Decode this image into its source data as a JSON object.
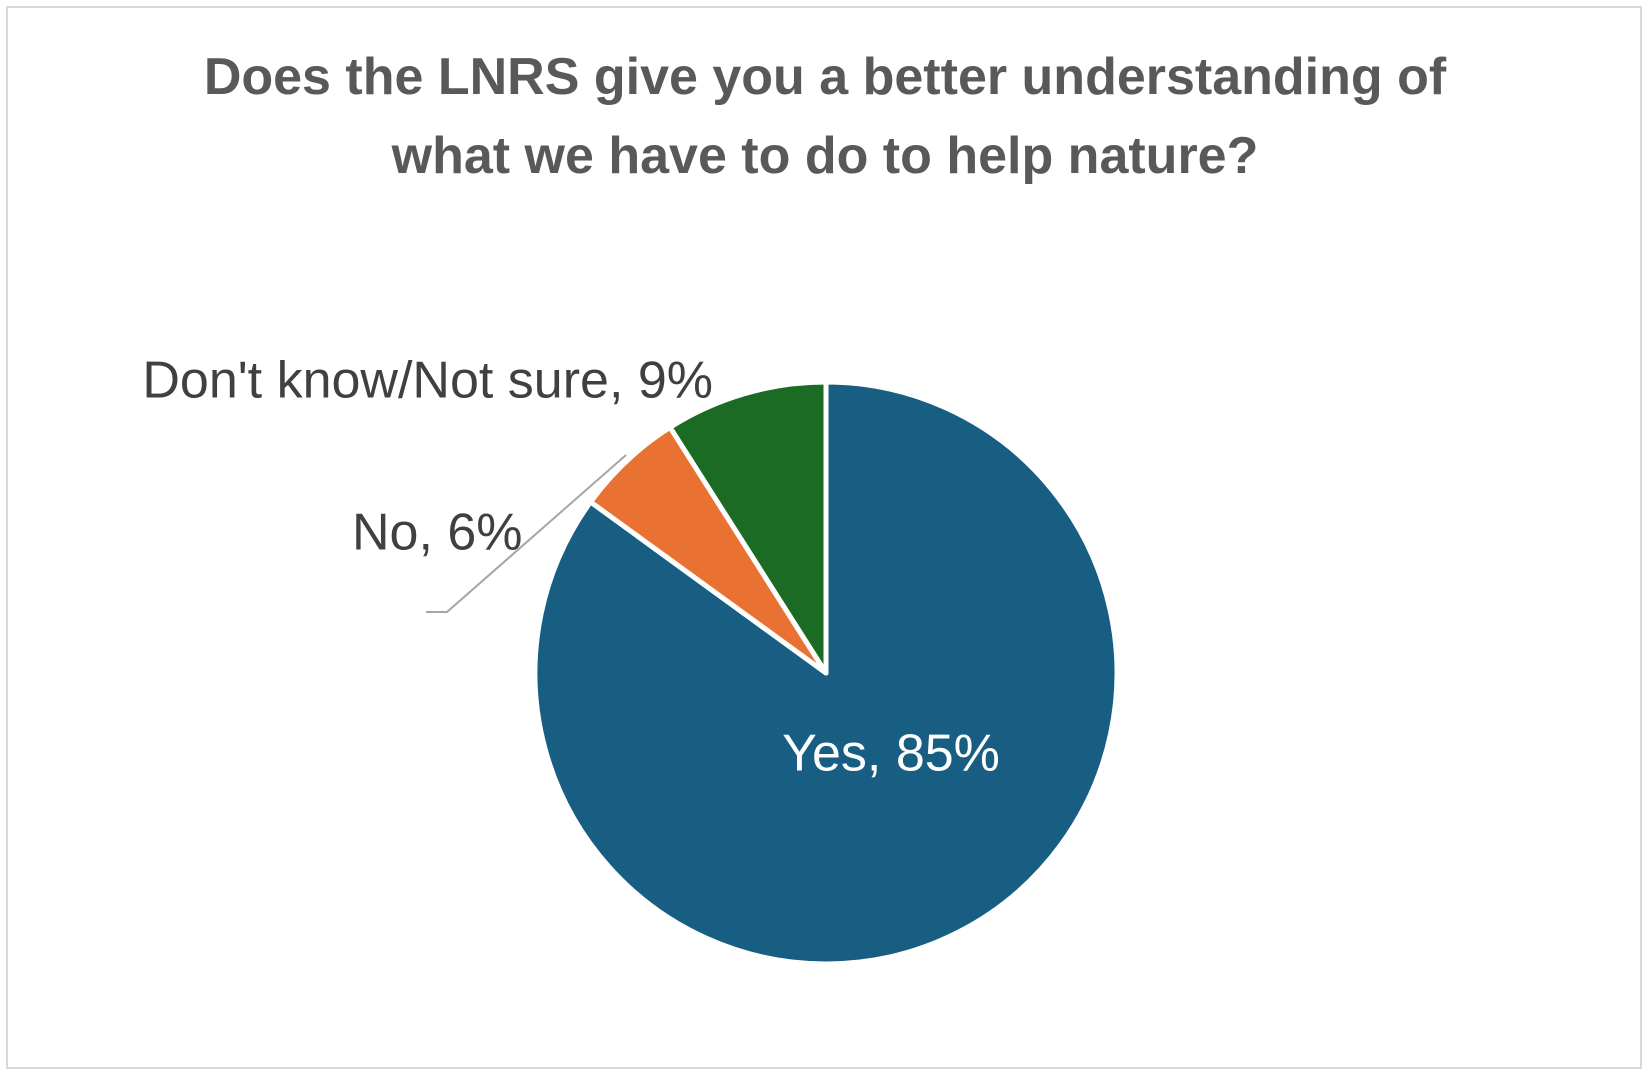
{
  "chart_data": {
    "type": "pie",
    "title": "Does the LNRS give you a better understanding of what we have to do to help nature?",
    "values": [
      85,
      6,
      9
    ],
    "value_labels": [
      "Yes, 85%",
      "No, 6%",
      "Don't know/Not sure, 9%"
    ],
    "colors": [
      "#175e82",
      "#e97132",
      "#1b6b24"
    ]
  }
}
